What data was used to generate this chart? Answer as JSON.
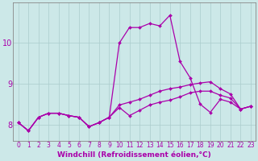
{
  "xlabel": "Windchill (Refroidissement éolien,°C)",
  "bg_color": "#cce8e8",
  "grid_color": "#aacccc",
  "line_color": "#aa00aa",
  "x": [
    0,
    1,
    2,
    3,
    4,
    5,
    6,
    7,
    8,
    9,
    10,
    11,
    12,
    13,
    14,
    15,
    16,
    17,
    18,
    19,
    20,
    21,
    22,
    23
  ],
  "series1": [
    8.05,
    7.85,
    8.18,
    8.28,
    8.28,
    8.22,
    8.18,
    7.95,
    8.05,
    8.18,
    10.0,
    10.38,
    10.38,
    10.48,
    10.42,
    10.68,
    9.55,
    9.15,
    8.5,
    8.3,
    8.62,
    8.55,
    8.38,
    8.45
  ],
  "series2": [
    8.05,
    7.85,
    8.18,
    8.28,
    8.28,
    8.22,
    8.18,
    7.95,
    8.05,
    8.18,
    8.42,
    8.22,
    8.35,
    8.48,
    8.55,
    8.6,
    8.68,
    8.78,
    8.82,
    8.82,
    8.72,
    8.65,
    8.38,
    8.45
  ],
  "series3": [
    8.05,
    7.85,
    8.18,
    8.28,
    8.28,
    8.22,
    8.18,
    7.95,
    8.05,
    8.18,
    8.48,
    8.55,
    8.62,
    8.72,
    8.82,
    8.88,
    8.92,
    8.98,
    9.02,
    9.05,
    8.88,
    8.75,
    8.38,
    8.45
  ],
  "ylim_min": 7.6,
  "ylim_max": 11.0,
  "yticks": [
    8,
    9,
    10
  ],
  "xtick_fontsize": 5.5,
  "ytick_fontsize": 7,
  "xlabel_fontsize": 6.5
}
